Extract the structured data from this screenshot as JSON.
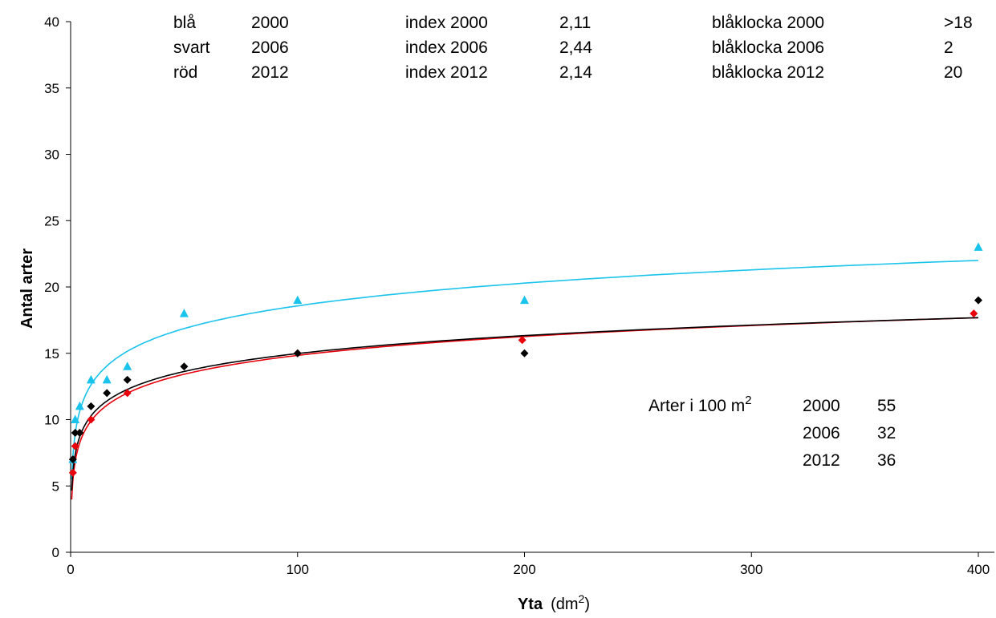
{
  "chart_data": {
    "type": "scatter",
    "xlabel": "Yta",
    "xlabel_unit": {
      "pre": "(dm",
      "sup": "2",
      "post": ")"
    },
    "ylabel": "Antal arter",
    "xlim": [
      0,
      400
    ],
    "ylim": [
      0,
      40
    ],
    "x_ticks": [
      0,
      100,
      200,
      300,
      400
    ],
    "y_ticks": [
      0,
      5,
      10,
      15,
      20,
      25,
      30,
      35,
      40
    ],
    "grid": false,
    "series": [
      {
        "color": "#19C3EC",
        "marker": "triangle",
        "x": [
          1,
          2,
          4,
          9,
          16,
          25,
          50,
          100,
          200,
          400
        ],
        "y": [
          7,
          10,
          11,
          13,
          13,
          14,
          18,
          19,
          19,
          23
        ],
        "trend": {
          "a": 7.2,
          "b": 2.47
        }
      },
      {
        "color": "#E8000B",
        "marker": "diamond",
        "x": [
          1,
          2,
          4,
          9,
          25,
          100,
          199,
          398
        ],
        "y": [
          6,
          8,
          9,
          10,
          12,
          15,
          16,
          18
        ],
        "trend": {
          "a": 5.4,
          "b": 2.05
        }
      },
      {
        "color": "#000000",
        "marker": "diamond",
        "x": [
          1,
          2,
          4,
          9,
          16,
          25,
          50,
          100,
          200,
          400
        ],
        "y": [
          7,
          9,
          9,
          11,
          12,
          13,
          14,
          15,
          15,
          19
        ],
        "trend": {
          "a": 6.0,
          "b": 1.95
        }
      }
    ],
    "annotations": {
      "legend_rows": [
        [
          "blå",
          "2000",
          "index 2000",
          "2,11",
          "blåklocka 2000",
          ">18"
        ],
        [
          "svart",
          "2006",
          "index 2006",
          "2,44",
          "blåklocka 2006",
          "2"
        ],
        [
          "röd",
          "2012",
          "index 2012",
          "2,14",
          "blåklocka 2012",
          "20"
        ]
      ],
      "arter_label": "Arter i 100 m",
      "arter_sup": "2",
      "arter_rows": [
        [
          "2000",
          "55"
        ],
        [
          "2006",
          "32"
        ],
        [
          "2012",
          "36"
        ]
      ]
    }
  }
}
